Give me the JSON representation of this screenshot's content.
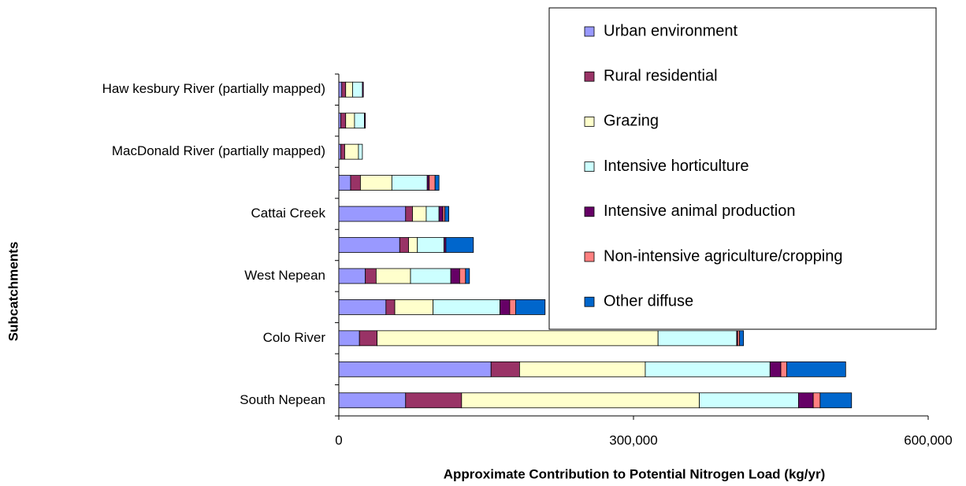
{
  "chart_data": {
    "type": "stacked-bar-horizontal",
    "categories": [
      "South Nepean",
      null,
      "Colo River",
      null,
      "West Nepean",
      null,
      "Cattai Creek",
      null,
      "MacDonald River (partially mapped)",
      null,
      "Haw kesbury River (partially mapped)"
    ],
    "series": [
      {
        "name": "Urban environment",
        "color": "#9999ff",
        "values": [
          68000,
          155000,
          21000,
          48000,
          27000,
          62000,
          68000,
          12000,
          2000,
          2000,
          3000
        ]
      },
      {
        "name": "Rural residential",
        "color": "#993366",
        "values": [
          57000,
          29000,
          18000,
          9000,
          11000,
          9000,
          7000,
          10000,
          4000,
          5000,
          4000
        ]
      },
      {
        "name": "Grazing",
        "color": "#ffffcc",
        "values": [
          242000,
          128000,
          286000,
          39000,
          35000,
          9000,
          14000,
          32000,
          14000,
          9000,
          7000
        ]
      },
      {
        "name": "Intensive horticulture",
        "color": "#ccffff",
        "values": [
          101000,
          127000,
          80000,
          68000,
          41000,
          27000,
          13000,
          36000,
          4000,
          10000,
          10000
        ]
      },
      {
        "name": "Intensive animal production",
        "color": "#660066",
        "values": [
          15000,
          11000,
          1000,
          10000,
          9000,
          2000,
          4000,
          2000,
          0,
          1000,
          1000
        ]
      },
      {
        "name": "Non-intensive agriculture/cropping",
        "color": "#ff8080",
        "values": [
          7000,
          6000,
          2000,
          6000,
          6000,
          0,
          2000,
          6000,
          0,
          0,
          0
        ]
      },
      {
        "name": "Other diffuse",
        "color": "#0066cc",
        "values": [
          32000,
          60000,
          4000,
          30000,
          4000,
          28000,
          4000,
          4000,
          0,
          0,
          0
        ]
      }
    ],
    "xlim": [
      0,
      600000
    ],
    "xticks": [
      0,
      {
        "value": 300000,
        "label": "300,000"
      },
      {
        "value": 600000,
        "label": "600,000"
      }
    ],
    "xlabel": "Approximate Contribution to Potential Nitrogen Load (kg/yr)",
    "ylabel": "Subcatchments",
    "legend": "top-right",
    "grid": false
  }
}
